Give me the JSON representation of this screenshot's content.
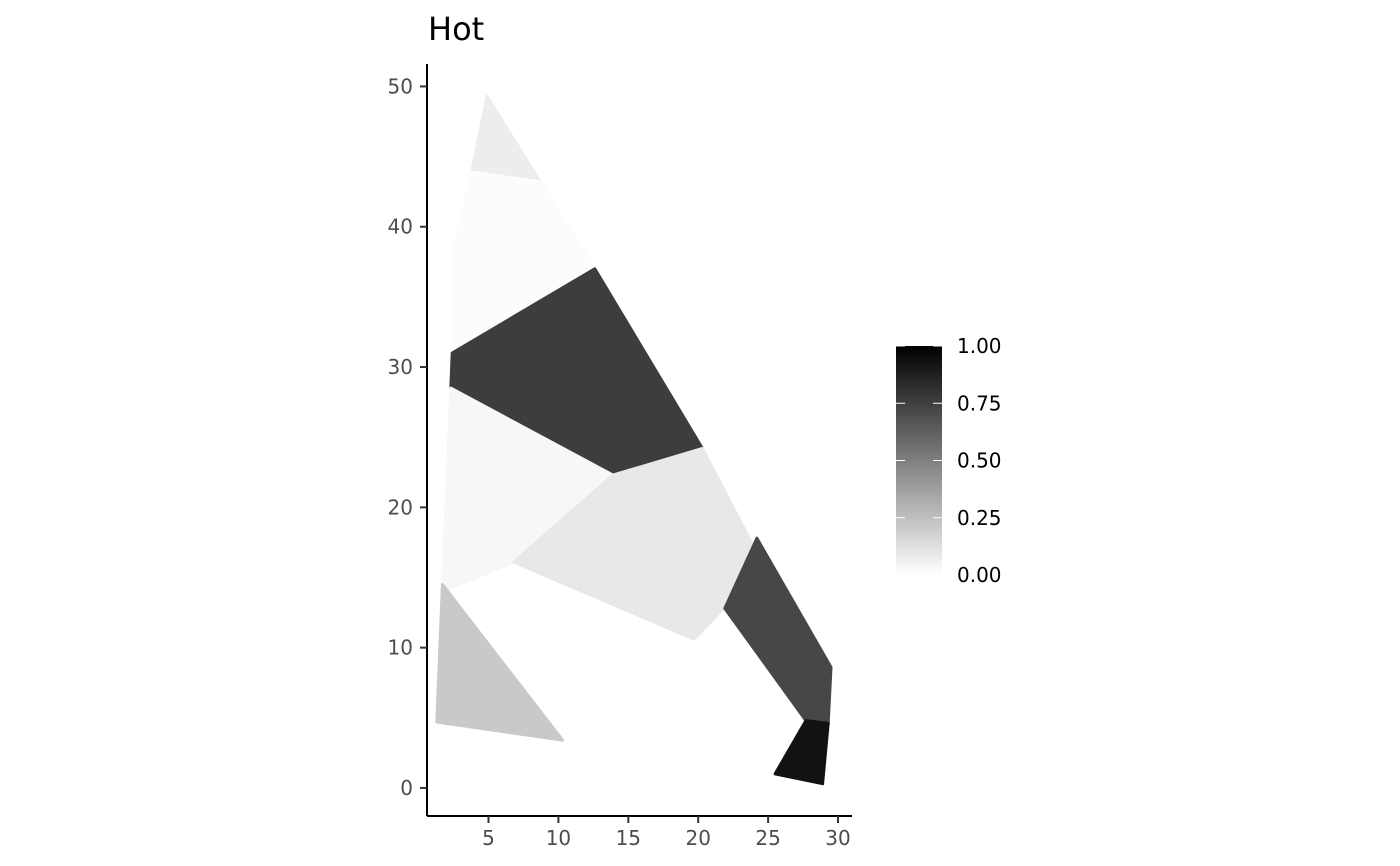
{
  "chart_data": {
    "type": "choropleth",
    "title": "Hot",
    "xlabel": "",
    "ylabel": "",
    "xlim": [
      0.6,
      31.0
    ],
    "ylim": [
      -2.0,
      51.6
    ],
    "x_ticks": [
      5,
      10,
      15,
      20,
      25,
      30
    ],
    "y_ticks": [
      0,
      10,
      20,
      30,
      40,
      50
    ],
    "grid": false,
    "legend": {
      "position": "right",
      "type": "colorbar",
      "range": [
        0,
        1
      ],
      "ticks": [
        "0.00",
        "0.25",
        "0.50",
        "0.75",
        "1.00"
      ],
      "low_color": "#ffffff",
      "high_color": "#000000"
    },
    "regions": [
      {
        "value": 0.07,
        "points": [
          [
            4.9,
            49.3
          ],
          [
            8.7,
            43.2
          ],
          [
            3.8,
            43.9
          ]
        ]
      },
      {
        "value": 0.01,
        "points": [
          [
            3.8,
            43.9
          ],
          [
            8.7,
            43.2
          ],
          [
            12.6,
            37.0
          ],
          [
            2.4,
            31.0
          ],
          [
            2.4,
            38.0
          ]
        ]
      },
      {
        "value": 0.76,
        "points": [
          [
            2.4,
            31.0
          ],
          [
            12.6,
            37.0
          ],
          [
            20.3,
            24.2
          ],
          [
            13.9,
            22.3
          ],
          [
            2.3,
            28.5
          ]
        ]
      },
      {
        "value": 0.03,
        "points": [
          [
            2.3,
            28.5
          ],
          [
            13.9,
            22.3
          ],
          [
            6.8,
            16.1
          ],
          [
            1.7,
            14.0
          ]
        ]
      },
      {
        "value": 0.09,
        "points": [
          [
            13.9,
            22.3
          ],
          [
            20.3,
            24.2
          ],
          [
            23.8,
            17.5
          ],
          [
            21.7,
            12.7
          ],
          [
            19.7,
            10.6
          ],
          [
            6.8,
            16.1
          ]
        ]
      },
      {
        "value": 0.72,
        "points": [
          [
            24.2,
            17.8
          ],
          [
            29.5,
            8.6
          ],
          [
            29.3,
            4.6
          ],
          [
            27.7,
            4.8
          ],
          [
            21.9,
            12.8
          ]
        ]
      },
      {
        "value": 0.93,
        "points": [
          [
            27.7,
            4.8
          ],
          [
            29.3,
            4.6
          ],
          [
            28.9,
            0.3
          ],
          [
            25.5,
            1.0
          ]
        ]
      },
      {
        "value": 0.21,
        "points": [
          [
            1.7,
            14.5
          ],
          [
            10.3,
            3.4
          ],
          [
            1.3,
            4.7
          ]
        ]
      }
    ]
  }
}
